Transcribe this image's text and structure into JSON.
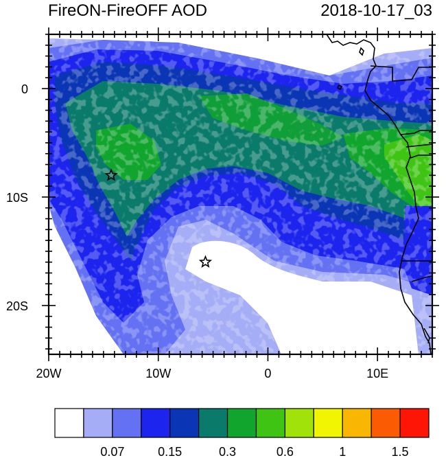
{
  "title": "FireON-FireOFF AOD",
  "timestamp": "2018-10-17_03",
  "map": {
    "lon_range": [
      -20,
      15
    ],
    "lat_range": [
      -24.5,
      5
    ],
    "x_ticks": [
      {
        "value": -20,
        "label": "20W"
      },
      {
        "value": -10,
        "label": "10W"
      },
      {
        "value": 0,
        "label": "0"
      },
      {
        "value": 10,
        "label": "10E"
      }
    ],
    "y_ticks": [
      {
        "value": 0,
        "label": "0"
      },
      {
        "value": -10,
        "label": "10S"
      },
      {
        "value": -20,
        "label": "20S"
      }
    ],
    "markers": [
      {
        "name": "star-marker-north",
        "lon": -14.3,
        "lat": -8.0
      },
      {
        "name": "star-marker-south",
        "lon": -5.7,
        "lat": -16.0
      }
    ]
  },
  "colorbar": {
    "colors": [
      "#ffffff",
      "#a4adf5",
      "#6471f2",
      "#1c24ee",
      "#0a35b4",
      "#0a7a6a",
      "#11a52e",
      "#3fc414",
      "#a2e20b",
      "#f2f501",
      "#f9b602",
      "#fb5b02",
      "#fe1505"
    ],
    "labels": [
      "0.07",
      "0.15",
      "0.3",
      "0.6",
      "1",
      "1.5"
    ]
  }
}
